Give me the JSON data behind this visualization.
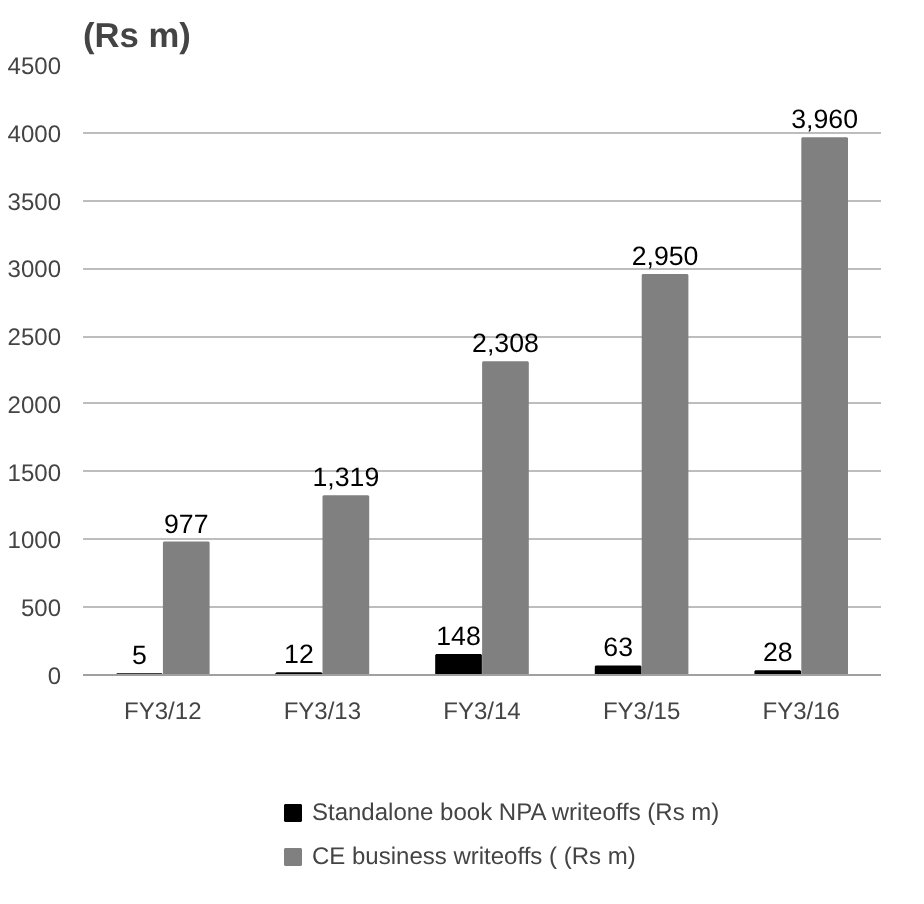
{
  "chart_data": {
    "type": "bar",
    "title": "(Rs m)",
    "categories": [
      "FY3/12",
      "FY3/13",
      "FY3/14",
      "FY3/15",
      "FY3/16"
    ],
    "series": [
      {
        "name": "Standalone book NPA writeoffs (Rs m)",
        "color": "#000000",
        "values": [
          5,
          12,
          148,
          63,
          28
        ],
        "value_labels": [
          "5",
          "12",
          "148",
          "63",
          "28"
        ]
      },
      {
        "name": "CE business writeoffs ( (Rs m)",
        "color": "#808080",
        "values": [
          977,
          1319,
          2308,
          2950,
          3960
        ],
        "value_labels": [
          "977",
          "1,319",
          "2,308",
          "2,950",
          "3,960"
        ]
      }
    ],
    "ylim": [
      0,
      4500
    ],
    "yticks": [
      0,
      500,
      1000,
      1500,
      2000,
      2500,
      3000,
      3500,
      4000,
      4500
    ],
    "grid": "y",
    "legend": "bottom"
  }
}
